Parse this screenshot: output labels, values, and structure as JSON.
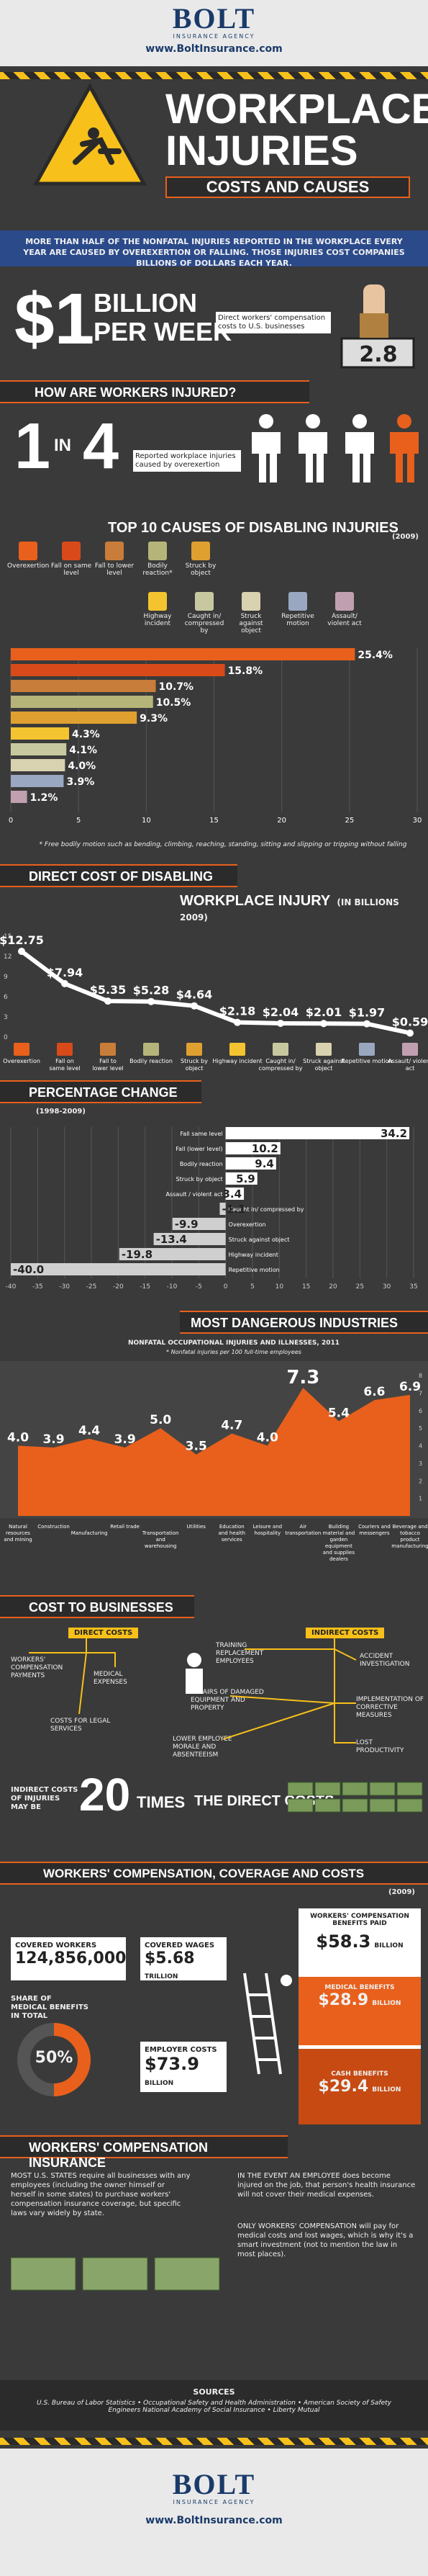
{
  "header": {
    "logo_main": "BOLT",
    "logo_sub": "INSURANCE AGENCY",
    "url": "www.BoltInsurance.com"
  },
  "title": {
    "line1": "WORKPLACE",
    "line2": "INJURIES",
    "line3": "COSTS AND CAUSES",
    "intro": "MORE THAN HALF OF THE NONFATAL INJURIES REPORTED IN THE WORKPLACE EVERY YEAR ARE CAUSED BY OVEREXERTION OR FALLING. THOSE INJURIES COST COMPANIES BILLIONS OF DOLLARS EACH YEAR."
  },
  "billion": {
    "amount": "$1",
    "unit1": "BILLION",
    "unit2": "PER WEEK",
    "desc": "Direct workers' compensation costs to U.S. businesses",
    "meter": "2.8"
  },
  "how": {
    "heading": "HOW ARE WORKERS INJURED?",
    "ratio_1": "1",
    "ratio_in": "IN",
    "ratio_4": "4",
    "desc": "Reported workplace injuries caused by overexertion"
  },
  "top10": {
    "heading": "TOP 10 CAUSES OF DISABLING INJURIES",
    "year": "(2009)",
    "legend": [
      {
        "label": "Overexertion",
        "color": "#e8601c"
      },
      {
        "label": "Fall on same level",
        "color": "#d94a1a"
      },
      {
        "label": "Fall to lower level",
        "color": "#c97d3a"
      },
      {
        "label": "Bodily reaction*",
        "color": "#b5b57a"
      },
      {
        "label": "Struck by object",
        "color": "#e0a030"
      },
      {
        "label": "Highway incident",
        "color": "#f4c430"
      },
      {
        "label": "Caught in/ compressed by",
        "color": "#c8c8a0"
      },
      {
        "label": "Struck against object",
        "color": "#d9d2b0"
      },
      {
        "label": "Repetitive motion",
        "color": "#9aa7c0"
      },
      {
        "label": "Assault/ violent act",
        "color": "#c0a0b0"
      }
    ],
    "bars": [
      "25.4%",
      "15.8%",
      "10.7%",
      "10.5%",
      "9.3%",
      "4.3%",
      "4.1%",
      "4.0%",
      "3.9%",
      "1.2%"
    ],
    "axis": [
      "0",
      "5",
      "10",
      "15",
      "20",
      "25",
      "30"
    ],
    "footnote": "* Free bodily motion such as bending, climbing, reaching, standing, sitting and slipping or tripping without falling"
  },
  "direct": {
    "heading1": "DIRECT COST OF DISABLING",
    "heading2": "WORKPLACE INJURY",
    "heading2_sub": "(IN BILLIONS 2009)",
    "labels": [
      "Overexertion",
      "Fall on same level",
      "Fall to lower level",
      "Bodily reaction",
      "Struck by object",
      "Highway incident",
      "Caught in/ compressed by",
      "Struck against object",
      "Repetitive motion",
      "Assault/ violent act"
    ],
    "values_text": [
      "$12.75",
      "$7.94",
      "$5.35",
      "$5.28",
      "$4.64",
      "$2.18",
      "$2.04",
      "$2.01",
      "$1.97",
      "$0.59"
    ],
    "yaxis": [
      "15",
      "12",
      "9",
      "6",
      "3",
      "0"
    ]
  },
  "pct": {
    "heading": "PERCENTAGE CHANGE",
    "sub": "(1998-2009)",
    "bars": [
      {
        "label": "Fall same level",
        "value": "34.2"
      },
      {
        "label": "Fall (lower level)",
        "value": "10.2"
      },
      {
        "label": "Bodily reaction",
        "value": "9.4"
      },
      {
        "label": "Struck by object",
        "value": "5.9"
      },
      {
        "label": "Assault / violent act",
        "value": "3.4"
      },
      {
        "label": "Caught in/ compressed by",
        "value": "-1.1"
      },
      {
        "label": "Overexertion",
        "value": "-9.9"
      },
      {
        "label": "Struck against object",
        "value": "-13.4"
      },
      {
        "label": "Highway incident",
        "value": "-19.8"
      },
      {
        "label": "Repetitive motion",
        "value": "-40.0"
      }
    ],
    "axis": [
      "-40",
      "-35",
      "-30",
      "-25",
      "-20",
      "-15",
      "-10",
      "-5",
      "0",
      "5",
      "10",
      "15",
      "20",
      "25",
      "30",
      "35"
    ]
  },
  "dangerous": {
    "heading": "MOST DANGEROUS INDUSTRIES",
    "sub": "NONFATAL OCCUPATIONAL INJURIES AND ILLNESSES, 2011",
    "note": "* Nonfatal injuries per 100 full-time employees",
    "values": [
      "4.0",
      "3.9",
      "4.4",
      "3.9",
      "5.0",
      "3.5",
      "4.7",
      "4.0",
      "7.3",
      "5.4",
      "6.6",
      "6.9"
    ],
    "labels": [
      "Natural resources and mining",
      "Construction",
      "Manufacturing",
      "Retail trade",
      "Transportation and warehousing",
      "Utilities",
      "Education and health services",
      "Leisure and hospitality",
      "Air transportation",
      "Building material and garden equipment and supplies dealers",
      "Couriers and messengers",
      "Beverage and tobacco product manufacturing"
    ],
    "yaxis": [
      "8",
      "7",
      "6",
      "5",
      "4",
      "3",
      "2",
      "1"
    ]
  },
  "cost_biz": {
    "heading": "COST TO BUSINESSES",
    "direct": "DIRECT COSTS",
    "indirect": "INDIRECT COSTS",
    "items": [
      "WORKERS' COMPENSATION PAYMENTS",
      "MEDICAL EXPENSES",
      "COSTS FOR LEGAL SERVICES",
      "TRAINING REPLACEMENT EMPLOYEES",
      "ACCIDENT INVESTIGATION",
      "REPAIRS OF DAMAGED EQUIPMENT AND PROPERTY",
      "IMPLEMENTATION OF CORRECTIVE MEASURES",
      "LOWER EMPLOYEE MORALE AND ABSENTEEISM",
      "LOST PRODUCTIVITY"
    ],
    "indirect_note": "INDIRECT COSTS OF INJURIES MAY BE",
    "times": "20",
    "times_word": "TIMES",
    "times_end": "THE DIRECT COSTS"
  },
  "wc": {
    "heading": "WORKERS' COMPENSATION, COVERAGE AND COSTS",
    "year": "(2009)",
    "covered_label": "COVERED WORKERS",
    "covered_value": "124,856,000",
    "wages_label": "COVERED WAGES",
    "wages_value": "$5.68",
    "wages_unit": "TRILLION",
    "share_label": "SHARE OF MEDICAL BENEFITS IN TOTAL",
    "share_value": "50%",
    "employer_label": "EMPLOYER COSTS",
    "employer_value": "$73.9",
    "employer_unit": "BILLION",
    "paid_label": "WORKERS' COMPENSATION BENEFITS PAID",
    "paid_value": "$58.3",
    "paid_unit": "BILLION",
    "medical_label": "MEDICAL BENEFITS",
    "medical_value": "$28.9",
    "medical_unit": "BILLION",
    "cash_label": "CASH BENEFITS",
    "cash_value": "$29.4",
    "cash_unit": "BILLION"
  },
  "ins": {
    "heading": "WORKERS' COMPENSATION INSURANCE",
    "p1": "MOST U.S. STATES require all businesses with any employees (including the owner himself or herself in some states) to purchase workers' compensation insurance coverage, but specific laws vary widely by state.",
    "p2": "IN THE EVENT AN EMPLOYEE does become injured on the job, that person's health insurance will not cover their medical expenses.",
    "p3": "ONLY WORKERS' COMPENSATION will pay for medical costs and lost wages, which is why it's a smart investment (not to mention the law in most places)."
  },
  "sources": {
    "label": "SOURCES",
    "text": "U.S. Bureau of Labor Statistics • Occupational Safety and Health Administration • American Society of Safety Engineers National Academy of Social Insurance • Liberty Mutual"
  }
}
